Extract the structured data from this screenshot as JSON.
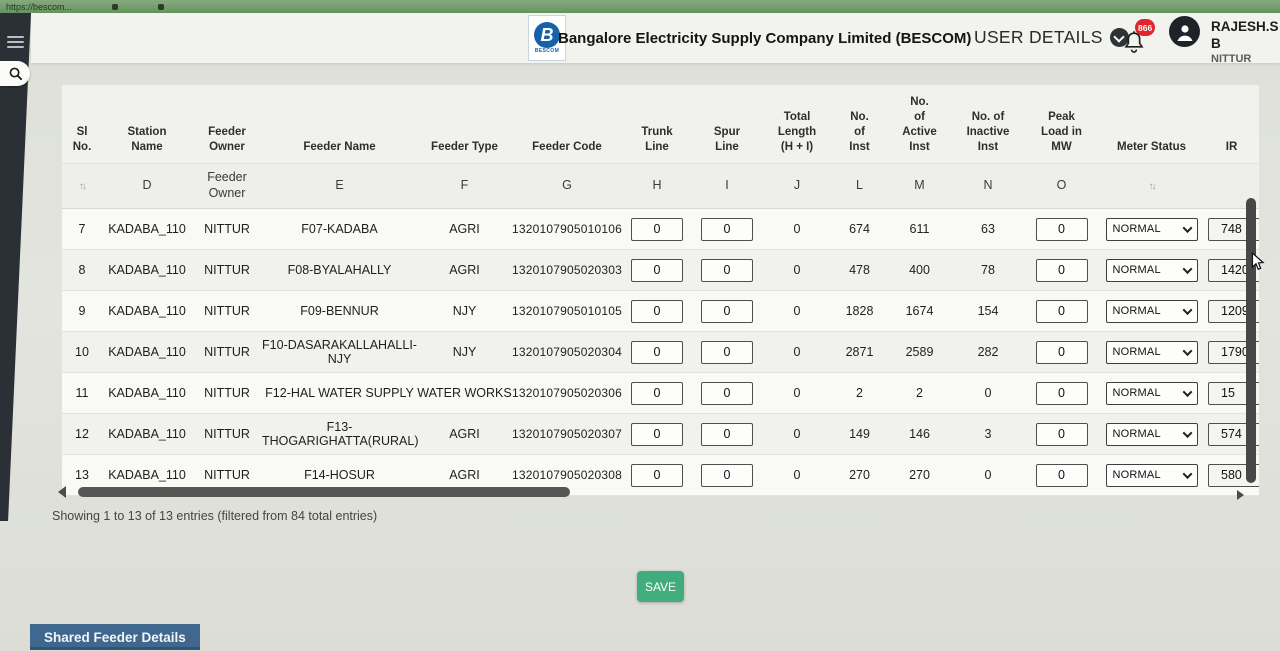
{
  "browser": {
    "url_fragment": "https://bescom..."
  },
  "header": {
    "logo_letter": "B",
    "logo_caption": "BESCOM",
    "title": "Bangalore Electricity Supply Company Limited (BESCOM)",
    "user_details_label": "USER DETAILS",
    "notification_count": "866",
    "user_name": "RAJESH.S B",
    "user_location": "NITTUR"
  },
  "table": {
    "headers": [
      {
        "label": "Sl\nNo."
      },
      {
        "label": "Station\nName"
      },
      {
        "label": "Feeder\nOwner"
      },
      {
        "label": "Feeder Name"
      },
      {
        "label": "Feeder Type"
      },
      {
        "label": "Feeder Code"
      },
      {
        "label": "Trunk\nLine"
      },
      {
        "label": "Spur\nLine"
      },
      {
        "label": "Total\nLength\n(H + I)"
      },
      {
        "label": "No.\nof\nInst"
      },
      {
        "label": "No.\nof\nActive\nInst"
      },
      {
        "label": "No. of\nInactive\nInst"
      },
      {
        "label": "Peak\nLoad in\nMW"
      },
      {
        "label": "Meter Status"
      },
      {
        "label": "IR"
      }
    ],
    "subheaders": [
      "",
      "D",
      "Feeder\nOwner",
      "E",
      "F",
      "G",
      "H",
      "I",
      "J",
      "L",
      "M",
      "N",
      "O",
      "",
      ""
    ],
    "meter_options": [
      "NORMAL"
    ],
    "rows": [
      {
        "sl": "7",
        "station": "KADABA_110",
        "owner": "NITTUR",
        "name": "F07-KADABA",
        "type": "AGRI",
        "code": "1320107905010106",
        "trunk": "0",
        "spur": "0",
        "total": "0",
        "inst": "674",
        "active": "611",
        "inactive": "63",
        "peak": "0",
        "meter": "NORMAL",
        "ir": "748"
      },
      {
        "sl": "8",
        "station": "KADABA_110",
        "owner": "NITTUR",
        "name": "F08-BYALAHALLY",
        "type": "AGRI",
        "code": "1320107905020303",
        "trunk": "0",
        "spur": "0",
        "total": "0",
        "inst": "478",
        "active": "400",
        "inactive": "78",
        "peak": "0",
        "meter": "NORMAL",
        "ir": "1420"
      },
      {
        "sl": "9",
        "station": "KADABA_110",
        "owner": "NITTUR",
        "name": "F09-BENNUR",
        "type": "NJY",
        "code": "1320107905010105",
        "trunk": "0",
        "spur": "0",
        "total": "0",
        "inst": "1828",
        "active": "1674",
        "inactive": "154",
        "peak": "0",
        "meter": "NORMAL",
        "ir": "1209"
      },
      {
        "sl": "10",
        "station": "KADABA_110",
        "owner": "NITTUR",
        "name": "F10-DASARAKALLAHALLI-NJY",
        "type": "NJY",
        "code": "1320107905020304",
        "trunk": "0",
        "spur": "0",
        "total": "0",
        "inst": "2871",
        "active": "2589",
        "inactive": "282",
        "peak": "0",
        "meter": "NORMAL",
        "ir": "1790"
      },
      {
        "sl": "11",
        "station": "KADABA_110",
        "owner": "NITTUR",
        "name": "F12-HAL WATER SUPPLY",
        "type": "WATER WORKS",
        "code": "1320107905020306",
        "trunk": "0",
        "spur": "0",
        "total": "0",
        "inst": "2",
        "active": "2",
        "inactive": "0",
        "peak": "0",
        "meter": "NORMAL",
        "ir": "15"
      },
      {
        "sl": "12",
        "station": "KADABA_110",
        "owner": "NITTUR",
        "name": "F13-THOGARIGHATTA(RURAL)",
        "type": "AGRI",
        "code": "1320107905020307",
        "trunk": "0",
        "spur": "0",
        "total": "0",
        "inst": "149",
        "active": "146",
        "inactive": "3",
        "peak": "0",
        "meter": "NORMAL",
        "ir": "574"
      },
      {
        "sl": "13",
        "station": "KADABA_110",
        "owner": "NITTUR",
        "name": "F14-HOSUR",
        "type": "AGRI",
        "code": "1320107905020308",
        "trunk": "0",
        "spur": "0",
        "total": "0",
        "inst": "270",
        "active": "270",
        "inactive": "0",
        "peak": "0",
        "meter": "NORMAL",
        "ir": "580"
      }
    ]
  },
  "footer": {
    "showing_text": "Showing 1 to 13 of 13 entries (filtered from 84 total entries)",
    "save_label": "SAVE",
    "shared_tab_label": "Shared Feeder Details"
  },
  "colors": {
    "save_green": "#42ad7c",
    "shared_tab_blue": "#40678e",
    "badge_red": "#e0262a",
    "sidebar_dark": "#2b3036",
    "logo_blue": "#1761a8"
  }
}
